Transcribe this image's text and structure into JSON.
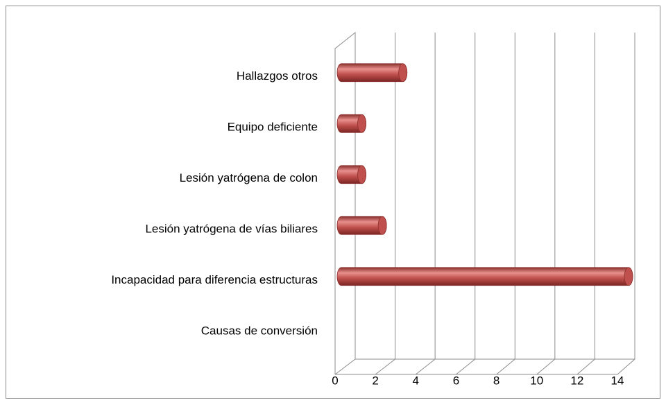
{
  "chart_data": {
    "type": "bar",
    "orientation": "horizontal",
    "style": "3d-cylinder",
    "categories": [
      "Causas de conversión",
      "Incapacidad para diferencia estructuras",
      "Lesión yatrógena de vías biliares",
      "Lesión yatrógena de colon",
      "Equipo deficiente",
      "Hallazgos otros"
    ],
    "values": [
      null,
      14,
      2,
      1,
      1,
      3
    ],
    "color": "#c0504d",
    "xlim": [
      0,
      14
    ],
    "xticks": [
      0,
      2,
      4,
      6,
      8,
      10,
      12,
      14
    ],
    "grid": true
  }
}
